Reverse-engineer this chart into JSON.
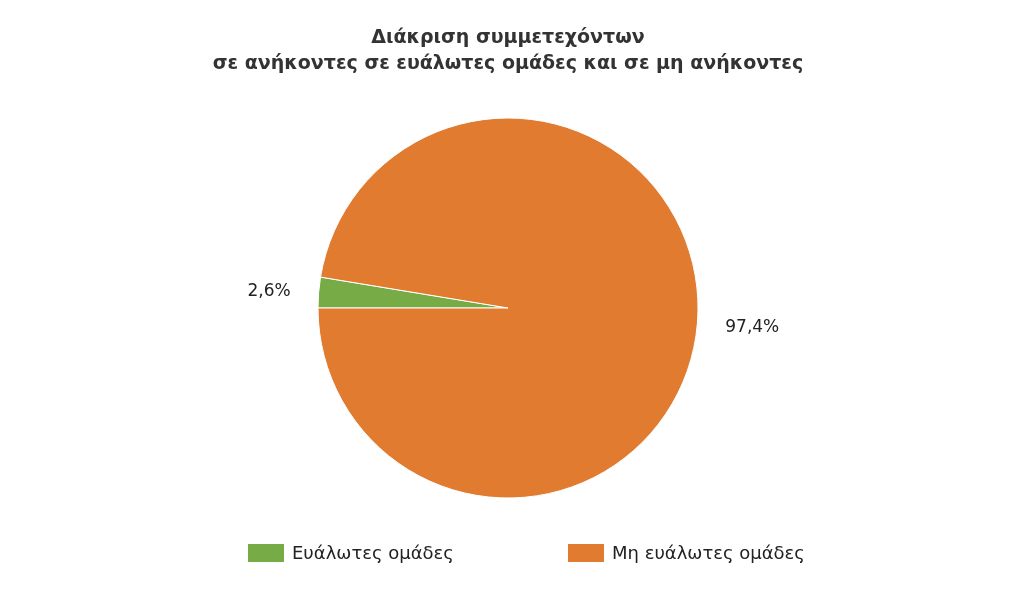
{
  "chart_data": {
    "type": "pie",
    "title": "Διάκριση συμμετεχόντων\nσε ανήκοντες σε ευάλωτες ομάδες και σε μη ανήκοντες",
    "categories": [
      "Ευάλωτες ομάδες",
      "Μη ευάλωτες ομάδες"
    ],
    "values": [
      2.6,
      97.4
    ],
    "colors": [
      "#77ab45",
      "#e07b30"
    ],
    "value_labels": [
      "2,6%",
      "97,4%"
    ],
    "legend": "bottom"
  }
}
